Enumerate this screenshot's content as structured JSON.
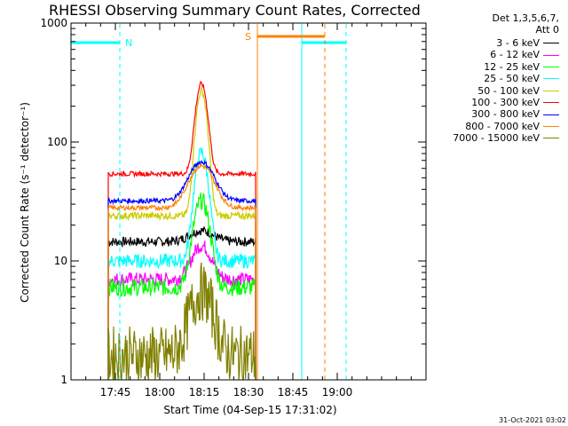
{
  "chart_data": {
    "type": "line",
    "title": "RHESSI Observing Summary Count Rates, Corrected",
    "xlabel": "Start Time (04-Sep-15 17:31:02)",
    "ylabel": "Corrected Count Rate (s⁻¹ detector⁻¹)",
    "ylog": true,
    "xlim_min": [
      17.5,
      19.5
    ],
    "ylim": [
      1,
      1000
    ],
    "x_ticks": [
      {
        "label": "17:45",
        "min": 17.75
      },
      {
        "label": "18:00",
        "min": 18.0
      },
      {
        "label": "18:15",
        "min": 18.25
      },
      {
        "label": "18:30",
        "min": 18.5
      },
      {
        "label": "18:45",
        "min": 18.75
      },
      {
        "label": "19:00",
        "min": 19.0
      }
    ],
    "y_ticks": [
      {
        "label": "1",
        "value": 1
      },
      {
        "label": "10",
        "value": 10
      },
      {
        "label": "100",
        "value": 100
      },
      {
        "label": "1000",
        "value": 1000
      }
    ],
    "detectors_label": "Det 1,3,5,6,7,",
    "attenuator_label": "Att 0",
    "data_window_hours": [
      17.71,
      18.54
    ],
    "series": [
      {
        "name": "3 - 6 keV",
        "color": "#000000",
        "base": 14.5,
        "peak": 18,
        "width": 0.09,
        "noise": 0.08
      },
      {
        "name": "6 - 12 keV",
        "color": "#ff00ff",
        "base": 7.0,
        "peak": 13.5,
        "width": 0.07,
        "noise": 0.12
      },
      {
        "name": "12 - 25 keV",
        "color": "#00ff00",
        "base": 6.0,
        "peak": 32,
        "width": 0.055,
        "noise": 0.15
      },
      {
        "name": "25 - 50 keV",
        "color": "#00ffff",
        "base": 10.0,
        "peak": 82,
        "width": 0.045,
        "noise": 0.12
      },
      {
        "name": "50 - 100 keV",
        "color": "#cccc00",
        "base": 24.0,
        "peak": 270,
        "width": 0.038,
        "noise": 0.06
      },
      {
        "name": "100 - 300 keV",
        "color": "#ff0000",
        "base": 54.0,
        "peak": 310,
        "width": 0.04,
        "noise": 0.04
      },
      {
        "name": "300 - 800 keV",
        "color": "#0000ff",
        "base": 32.0,
        "peak": 68,
        "width": 0.09,
        "noise": 0.04
      },
      {
        "name": "800 - 7000 keV",
        "color": "#ff8000",
        "base": 28.0,
        "peak": 63,
        "width": 0.09,
        "noise": 0.04
      },
      {
        "name": "7000 - 15000 keV",
        "color": "#808000",
        "base": 1.6,
        "peak": 5.5,
        "width": 0.08,
        "noise": 0.5
      }
    ],
    "markers": [
      {
        "label": "N",
        "color": "#00ffff",
        "kind": "night",
        "start_min": 17.49,
        "end_min": 17.775
      },
      {
        "label": "",
        "color": "#00ffff",
        "kind": "night",
        "start_min": 18.8,
        "end_min": 19.05
      },
      {
        "label": "S",
        "color": "#ff8000",
        "kind": "saa",
        "start_min": 18.55,
        "end_min": 18.93
      }
    ]
  },
  "timestamp": "31-Oct-2021 03:02"
}
